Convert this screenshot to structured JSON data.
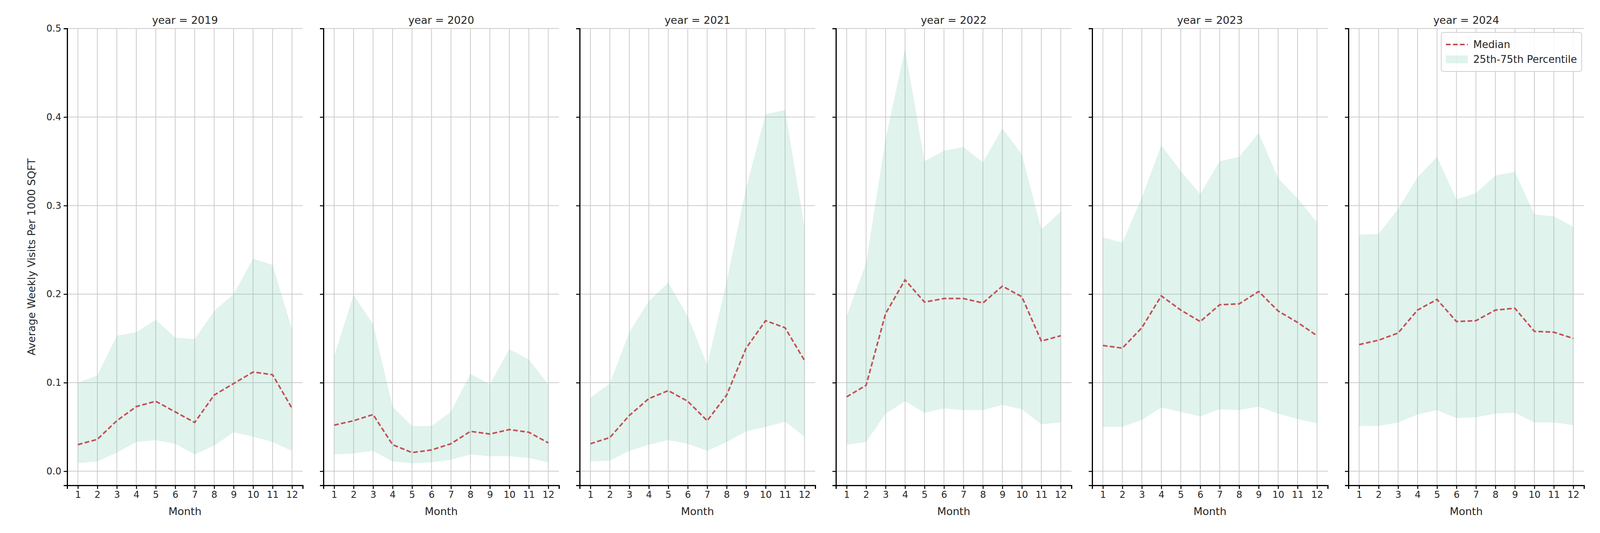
{
  "chart_data": [
    {
      "type": "line",
      "title": "year = 2019",
      "xlabel": "Month",
      "ylabel": "Average Weekly Visits Per 1000 SQFT",
      "x": [
        1,
        2,
        3,
        4,
        5,
        6,
        7,
        8,
        9,
        10,
        11,
        12
      ],
      "xlim": [
        0.45,
        12.55
      ],
      "xticks": [
        1,
        2,
        3,
        4,
        5,
        6,
        7,
        8,
        9,
        10,
        11,
        12
      ],
      "ylim": [
        -0.016,
        0.5
      ],
      "yticks": [
        {
          "value": 0,
          "label": "0.0"
        },
        0.1,
        0.2,
        0.3,
        0.4,
        0.5
      ],
      "grid": true,
      "series": [
        {
          "name": "Median",
          "type": "line",
          "line_style": "dashed",
          "color": "#c44e52",
          "values": [
            0.03,
            0.036,
            0.057,
            0.073,
            0.079,
            0.067,
            0.055,
            0.086,
            0.099,
            0.112,
            0.109,
            0.071
          ]
        },
        {
          "name": "25th-75th Percentile",
          "type": "area",
          "color": "#66c2a5",
          "low": [
            0.009,
            0.011,
            0.021,
            0.033,
            0.035,
            0.031,
            0.019,
            0.029,
            0.044,
            0.039,
            0.033,
            0.023
          ],
          "high": [
            0.1,
            0.108,
            0.153,
            0.157,
            0.171,
            0.151,
            0.149,
            0.181,
            0.2,
            0.24,
            0.233,
            0.16
          ]
        }
      ]
    },
    {
      "type": "line",
      "title": "year = 2020",
      "xlabel": "Month",
      "tick_labels": "x",
      "x": [
        1,
        2,
        3,
        4,
        5,
        6,
        7,
        8,
        9,
        10,
        11,
        12
      ],
      "xlim": [
        0.45,
        12.55
      ],
      "xticks": [
        1,
        2,
        3,
        4,
        5,
        6,
        7,
        8,
        9,
        10,
        11,
        12
      ],
      "ylim": [
        -0.016,
        0.5
      ],
      "yticks": [
        0,
        0.1,
        0.2,
        0.3,
        0.4,
        0.5
      ],
      "grid": true,
      "series": [
        {
          "name": "Median",
          "type": "line",
          "line_style": "dashed",
          "color": "#c44e52",
          "values": [
            0.052,
            0.057,
            0.064,
            0.03,
            0.021,
            0.024,
            0.031,
            0.045,
            0.042,
            0.047,
            0.044,
            0.032
          ]
        },
        {
          "name": "25th-75th Percentile",
          "type": "area",
          "color": "#66c2a5",
          "low": [
            0.019,
            0.02,
            0.023,
            0.011,
            0.009,
            0.01,
            0.013,
            0.019,
            0.017,
            0.017,
            0.015,
            0.01
          ],
          "high": [
            0.13,
            0.199,
            0.166,
            0.073,
            0.051,
            0.051,
            0.067,
            0.11,
            0.098,
            0.138,
            0.126,
            0.098
          ]
        }
      ]
    },
    {
      "type": "line",
      "title": "year = 2021",
      "xlabel": "Month",
      "tick_labels": "x",
      "x": [
        1,
        2,
        3,
        4,
        5,
        6,
        7,
        8,
        9,
        10,
        11,
        12
      ],
      "xlim": [
        0.45,
        12.55
      ],
      "xticks": [
        1,
        2,
        3,
        4,
        5,
        6,
        7,
        8,
        9,
        10,
        11,
        12
      ],
      "ylim": [
        -0.016,
        0.5
      ],
      "yticks": [
        0,
        0.1,
        0.2,
        0.3,
        0.4,
        0.5
      ],
      "grid": true,
      "series": [
        {
          "name": "Median",
          "type": "line",
          "line_style": "dashed",
          "color": "#c44e52",
          "values": [
            0.031,
            0.038,
            0.063,
            0.082,
            0.091,
            0.079,
            0.057,
            0.086,
            0.139,
            0.17,
            0.162,
            0.125
          ]
        },
        {
          "name": "25th-75th Percentile",
          "type": "area",
          "color": "#66c2a5",
          "low": [
            0.011,
            0.012,
            0.023,
            0.03,
            0.035,
            0.031,
            0.023,
            0.033,
            0.045,
            0.05,
            0.056,
            0.039
          ],
          "high": [
            0.083,
            0.099,
            0.157,
            0.192,
            0.213,
            0.175,
            0.12,
            0.214,
            0.32,
            0.403,
            0.408,
            0.275
          ]
        }
      ]
    },
    {
      "type": "line",
      "title": "year = 2022",
      "xlabel": "Month",
      "tick_labels": "x",
      "x": [
        1,
        2,
        3,
        4,
        5,
        6,
        7,
        8,
        9,
        10,
        11,
        12
      ],
      "xlim": [
        0.45,
        12.55
      ],
      "xticks": [
        1,
        2,
        3,
        4,
        5,
        6,
        7,
        8,
        9,
        10,
        11,
        12
      ],
      "ylim": [
        -0.016,
        0.5
      ],
      "yticks": [
        0,
        0.1,
        0.2,
        0.3,
        0.4,
        0.5
      ],
      "grid": true,
      "series": [
        {
          "name": "Median",
          "type": "line",
          "line_style": "dashed",
          "color": "#c44e52",
          "values": [
            0.084,
            0.097,
            0.178,
            0.216,
            0.191,
            0.195,
            0.195,
            0.19,
            0.209,
            0.197,
            0.147,
            0.153
          ]
        },
        {
          "name": "25th-75th Percentile",
          "type": "area",
          "color": "#66c2a5",
          "low": [
            0.03,
            0.033,
            0.065,
            0.079,
            0.066,
            0.071,
            0.069,
            0.069,
            0.075,
            0.07,
            0.053,
            0.055
          ],
          "high": [
            0.175,
            0.235,
            0.375,
            0.477,
            0.35,
            0.362,
            0.366,
            0.349,
            0.387,
            0.358,
            0.273,
            0.293
          ]
        }
      ]
    },
    {
      "type": "line",
      "title": "year = 2023",
      "xlabel": "Month",
      "tick_labels": "x",
      "x": [
        1,
        2,
        3,
        4,
        5,
        6,
        7,
        8,
        9,
        10,
        11,
        12
      ],
      "xlim": [
        0.45,
        12.55
      ],
      "xticks": [
        1,
        2,
        3,
        4,
        5,
        6,
        7,
        8,
        9,
        10,
        11,
        12
      ],
      "ylim": [
        -0.016,
        0.5
      ],
      "yticks": [
        0,
        0.1,
        0.2,
        0.3,
        0.4,
        0.5
      ],
      "grid": true,
      "series": [
        {
          "name": "Median",
          "type": "line",
          "line_style": "dashed",
          "color": "#c44e52",
          "values": [
            0.142,
            0.139,
            0.162,
            0.198,
            0.182,
            0.169,
            0.188,
            0.189,
            0.203,
            0.181,
            0.168,
            0.153
          ]
        },
        {
          "name": "25th-75th Percentile",
          "type": "area",
          "color": "#66c2a5",
          "low": [
            0.05,
            0.05,
            0.058,
            0.072,
            0.067,
            0.062,
            0.07,
            0.069,
            0.073,
            0.065,
            0.059,
            0.054
          ],
          "high": [
            0.264,
            0.258,
            0.309,
            0.368,
            0.339,
            0.313,
            0.35,
            0.355,
            0.382,
            0.331,
            0.308,
            0.281
          ]
        }
      ]
    },
    {
      "type": "line",
      "title": "year = 2024",
      "xlabel": "Month",
      "tick_labels": "x",
      "legend": "upper right",
      "x": [
        1,
        2,
        3,
        4,
        5,
        6,
        7,
        8,
        9,
        10,
        11,
        12
      ],
      "xlim": [
        0.45,
        12.55
      ],
      "xticks": [
        1,
        2,
        3,
        4,
        5,
        6,
        7,
        8,
        9,
        10,
        11,
        12
      ],
      "ylim": [
        -0.016,
        0.5
      ],
      "yticks": [
        0,
        0.1,
        0.2,
        0.3,
        0.4,
        0.5
      ],
      "grid": true,
      "series": [
        {
          "name": "Median",
          "type": "line",
          "line_style": "dashed",
          "color": "#c44e52",
          "values": [
            0.143,
            0.148,
            0.156,
            0.182,
            0.194,
            0.169,
            0.17,
            0.182,
            0.184,
            0.158,
            0.157,
            0.15
          ]
        },
        {
          "name": "25th-75th Percentile",
          "type": "area",
          "color": "#66c2a5",
          "low": [
            0.051,
            0.051,
            0.055,
            0.064,
            0.069,
            0.06,
            0.061,
            0.065,
            0.066,
            0.055,
            0.055,
            0.052
          ],
          "high": [
            0.267,
            0.268,
            0.296,
            0.332,
            0.355,
            0.307,
            0.314,
            0.334,
            0.338,
            0.29,
            0.288,
            0.276
          ]
        }
      ]
    }
  ]
}
